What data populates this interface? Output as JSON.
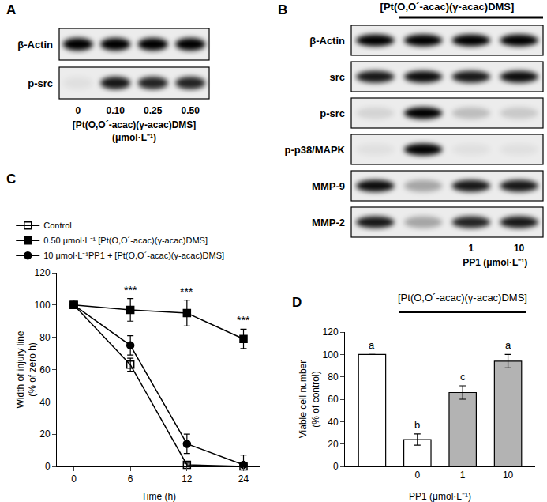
{
  "blots": [
    {
      "panel": "A",
      "rows": [
        {
          "label": "β-Actin",
          "intensity": [
            1,
            1,
            1,
            1
          ]
        },
        {
          "label": "p-src",
          "intensity": [
            0.05,
            0.9,
            0.85,
            0.85
          ]
        }
      ],
      "lane_labels": [
        "0",
        "0.10",
        "0.25",
        "0.50"
      ],
      "caption": [
        "[Pt(O,O´-acac)(γ-acac)DMS]",
        "(μmol·L⁻¹)"
      ]
    },
    {
      "panel": "B",
      "header": "[Pt(O,O´-acac)(γ-acac)DMS]",
      "treated": [
        false,
        true,
        true,
        true
      ],
      "rows": [
        {
          "label": "β-Actin",
          "intensity": [
            1,
            1,
            1,
            1
          ]
        },
        {
          "label": "src",
          "intensity": [
            0.9,
            0.95,
            0.9,
            0.95
          ]
        },
        {
          "label": "p-src",
          "intensity": [
            0.1,
            1,
            0.2,
            0.15
          ]
        },
        {
          "label": "p-p38/MAPK",
          "intensity": [
            0.05,
            1,
            0.05,
            0.05
          ]
        },
        {
          "label": "MMP-9",
          "intensity": [
            0.95,
            0.3,
            0.9,
            0.9
          ]
        },
        {
          "label": "MMP-2",
          "intensity": [
            0.9,
            0.3,
            0.85,
            0.9
          ]
        }
      ],
      "lane_labels": [
        null,
        null,
        "1",
        "10"
      ],
      "caption": [
        "PP1 (μmol·L⁻¹)"
      ]
    }
  ],
  "chart_data": [
    {
      "panel": "C",
      "type": "line",
      "categories": [
        "0",
        "6",
        "12",
        "24"
      ],
      "x_label": "Time (h)",
      "y_label": [
        "Width of injury line",
        "(% of zero h)"
      ],
      "ylim": [
        0,
        120
      ],
      "yticks": [
        0,
        20,
        40,
        60,
        80,
        100,
        120
      ],
      "grid": false,
      "legend": "top left",
      "series": [
        {
          "name": "Control",
          "color": "#000000",
          "marker": "square-open",
          "line_style": "solid",
          "values": [
            100,
            63,
            1,
            0
          ],
          "errors": [
            0,
            4,
            1,
            0
          ]
        },
        {
          "name": "0.50 μmol·L⁻¹ [Pt(O,O´-acac)(γ-acac)DMS]",
          "color": "#000000",
          "marker": "square",
          "line_style": "solid",
          "values": [
            100,
            97,
            95,
            79
          ],
          "errors": [
            0,
            7,
            8,
            6
          ]
        },
        {
          "name": "10 μmol·L⁻¹PP1 + [Pt(O,O´-acac)(γ-acac)DMS]",
          "color": "#000000",
          "marker": "circle",
          "line_style": "solid",
          "values": [
            100,
            75,
            14,
            1
          ],
          "errors": [
            0,
            6,
            6,
            6
          ]
        }
      ],
      "annotations": [
        {
          "category": "6",
          "text": "***"
        },
        {
          "category": "12",
          "text": "***"
        },
        {
          "category": "24",
          "text": "***"
        }
      ]
    },
    {
      "panel": "D",
      "type": "bar",
      "categories": [
        null,
        "0",
        "1",
        "10"
      ],
      "values": [
        100,
        24,
        66,
        94
      ],
      "errors": [
        0,
        5,
        6,
        6
      ],
      "colors": [
        "#ffffff",
        "#ffffff",
        "#b3b3b3",
        "#b3b3b3"
      ],
      "annotations": [
        "a",
        "b",
        "c",
        "a"
      ],
      "x_label": "PP1 (μmol·L⁻¹)",
      "y_label": [
        "Viable cell number",
        "(% of control)"
      ],
      "ylim": [
        0,
        120
      ],
      "yticks": [
        0,
        20,
        40,
        60,
        80,
        100,
        120
      ],
      "grid": false,
      "treatment_label": "[Pt(O,O´-acac)(γ-acac)DMS]",
      "treated": [
        false,
        true,
        true,
        true
      ]
    }
  ]
}
